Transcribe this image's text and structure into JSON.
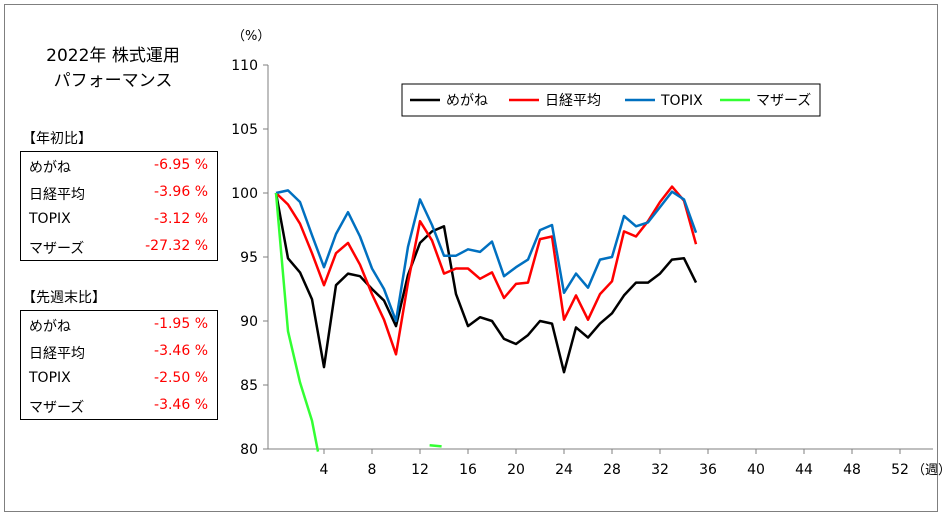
{
  "title": {
    "line1": "2022年  株式運用",
    "line2": "パフォーマンス"
  },
  "ytd": {
    "label": "【年初比】",
    "rows": [
      {
        "name": "めがね",
        "value": "-6.95 %"
      },
      {
        "name": "日経平均",
        "value": "-3.96 %"
      },
      {
        "name": "TOPIX",
        "value": "-3.12 %"
      },
      {
        "name": "マザーズ",
        "value": "-27.32 %"
      }
    ]
  },
  "wow": {
    "label": "【先週末比】",
    "rows": [
      {
        "name": "めがね",
        "value": "-1.95 %"
      },
      {
        "name": "日経平均",
        "value": "-3.46 %"
      },
      {
        "name": "TOPIX",
        "value": "-2.50 %"
      },
      {
        "name": "マザーズ",
        "value": "-3.46 %"
      }
    ]
  },
  "chart_data": {
    "type": "line",
    "title": "",
    "ylabel": "（%）",
    "xlabel": "（週）",
    "ylim": [
      80,
      110
    ],
    "yticks": [
      80,
      85,
      90,
      95,
      100,
      105,
      110
    ],
    "xlim": [
      0,
      55
    ],
    "xticks": [
      4,
      8,
      12,
      16,
      20,
      24,
      28,
      32,
      36,
      40,
      44,
      48,
      52
    ],
    "grid": false,
    "legend_position": "top-center",
    "series": [
      {
        "name": "めがね",
        "color": "#000000",
        "x": [
          0,
          1,
          2,
          3,
          4,
          5,
          6,
          7,
          8,
          9,
          10,
          11,
          12,
          13,
          14,
          15,
          16,
          17,
          18,
          19,
          20,
          21,
          22,
          23,
          24,
          25,
          26,
          27,
          28,
          29,
          30,
          31,
          32,
          33,
          34,
          35
        ],
        "y": [
          100,
          94.9,
          93.8,
          91.7,
          86.4,
          92.8,
          93.7,
          93.5,
          92.5,
          91.6,
          89.6,
          93.6,
          96.1,
          97,
          97.4,
          92.1,
          89.6,
          90.3,
          90,
          88.6,
          88.2,
          88.9,
          90,
          89.8,
          86,
          89.5,
          88.7,
          89.8,
          90.6,
          92,
          93,
          93,
          93.7,
          94.8,
          94.9,
          93
        ]
      },
      {
        "name": "日経平均",
        "color": "#ff0000",
        "x": [
          0,
          1,
          2,
          3,
          4,
          5,
          6,
          7,
          8,
          9,
          10,
          11,
          12,
          13,
          14,
          15,
          16,
          17,
          18,
          19,
          20,
          21,
          22,
          23,
          24,
          25,
          26,
          27,
          28,
          29,
          30,
          31,
          32,
          33,
          34,
          35
        ],
        "y": [
          100,
          99.1,
          97.6,
          95.3,
          92.8,
          95.3,
          96.1,
          94.4,
          92.1,
          90.1,
          87.4,
          93,
          97.8,
          96.3,
          93.7,
          94.1,
          94.1,
          93.3,
          93.8,
          91.8,
          92.9,
          93,
          96.4,
          96.6,
          90.1,
          92,
          90.1,
          92.1,
          93.1,
          97,
          96.6,
          97.8,
          99.3,
          100.5,
          99.4,
          96
        ]
      },
      {
        "name": "TOPIX",
        "color": "#0070c0",
        "x": [
          0,
          1,
          2,
          3,
          4,
          5,
          6,
          7,
          8,
          9,
          10,
          11,
          12,
          13,
          14,
          15,
          16,
          17,
          18,
          19,
          20,
          21,
          22,
          23,
          24,
          25,
          26,
          27,
          28,
          29,
          30,
          31,
          32,
          33,
          34,
          35
        ],
        "y": [
          100,
          100.2,
          99.3,
          96.7,
          94.2,
          96.8,
          98.5,
          96.6,
          94.1,
          92.5,
          90,
          95.8,
          99.5,
          97.5,
          95.1,
          95.1,
          95.6,
          95.4,
          96.2,
          93.5,
          94.2,
          94.8,
          97.1,
          97.5,
          92.2,
          93.7,
          92.6,
          94.8,
          95,
          98.2,
          97.4,
          97.7,
          98.9,
          100.1,
          99.5,
          96.9
        ]
      },
      {
        "name": "マザーズ",
        "color": "#33ff33",
        "x": [
          0,
          1,
          2,
          3,
          3.5
        ],
        "y": [
          100,
          89.2,
          85.2,
          82.2,
          79.8
        ],
        "extra_segment": {
          "x": [
            12.8,
            13.8
          ],
          "y": [
            80.3,
            80.2
          ]
        }
      }
    ]
  }
}
